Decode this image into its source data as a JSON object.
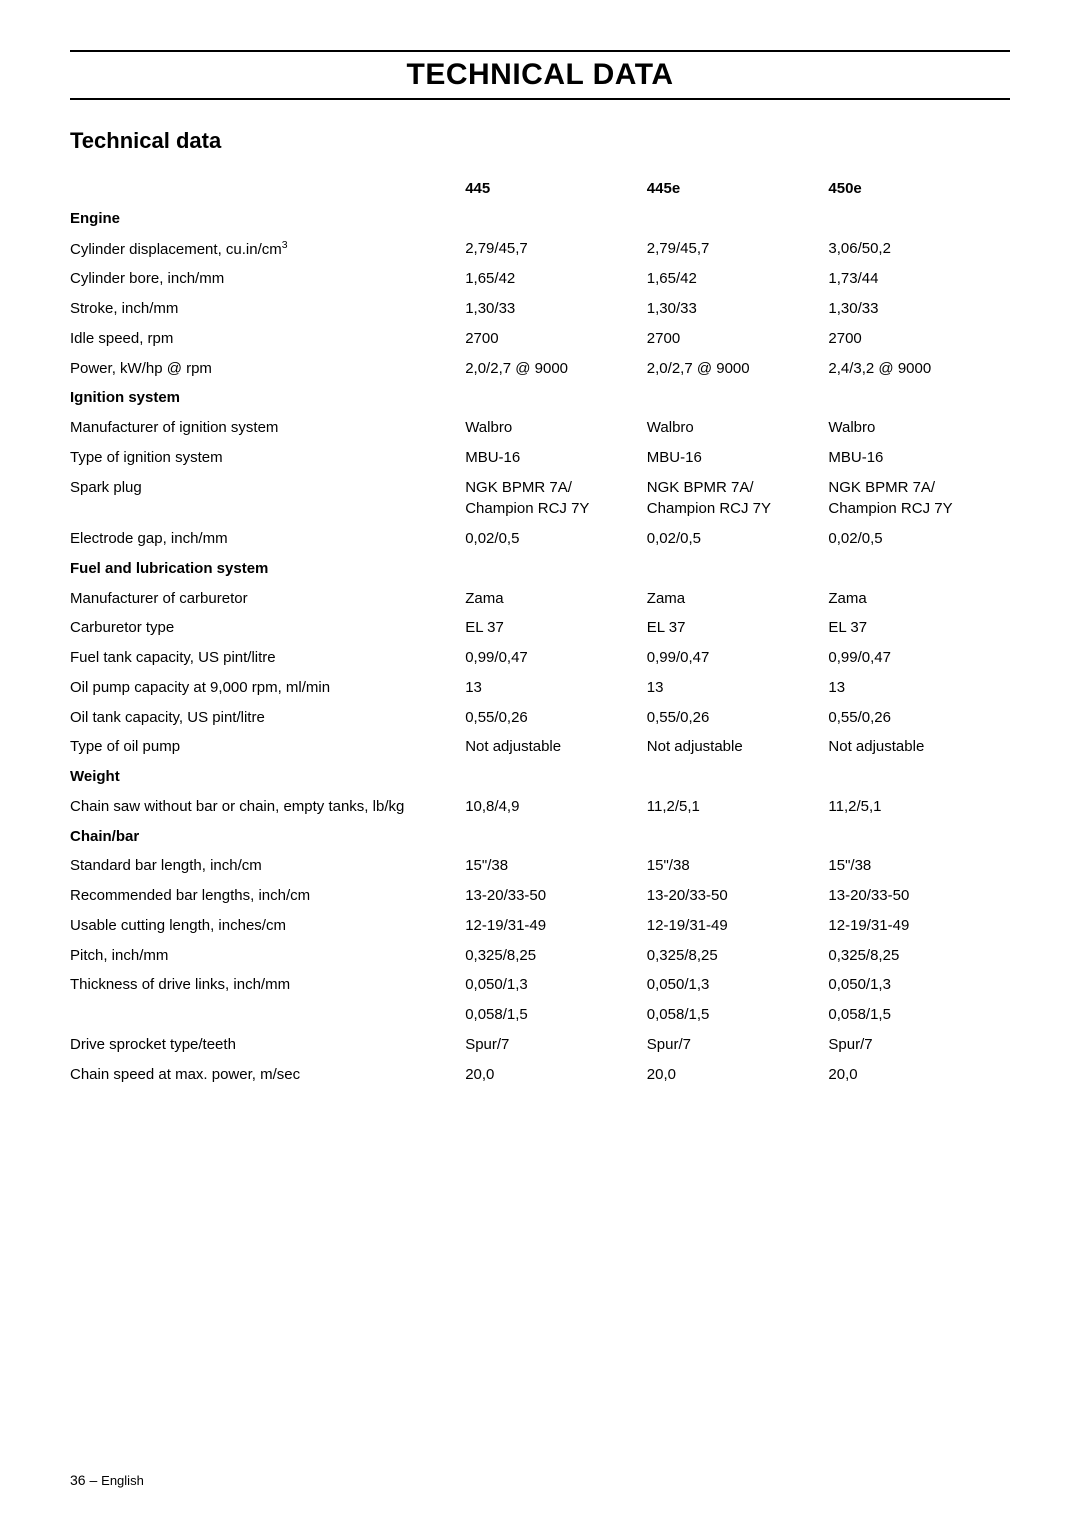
{
  "page": {
    "title": "TECHNICAL DATA",
    "subtitle": "Technical data",
    "footer_page": "36",
    "footer_sep": " – ",
    "footer_lang": "English"
  },
  "table": {
    "columns": [
      "445",
      "445e",
      "450e"
    ],
    "col_widths_pct": [
      42,
      19.3,
      19.3,
      19.3
    ],
    "font_size": 15,
    "sections": [
      {
        "heading": "Engine",
        "rows": [
          {
            "label_html": "Cylinder displacement, cu.in/cm<span class='sup'>3</span>",
            "vals": [
              "2,79/45,7",
              "2,79/45,7",
              "3,06/50,2"
            ]
          },
          {
            "label": "Cylinder bore, inch/mm",
            "vals": [
              "1,65/42",
              "1,65/42",
              "1,73/44"
            ]
          },
          {
            "label": "Stroke, inch/mm",
            "vals": [
              "1,30/33",
              "1,30/33",
              "1,30/33"
            ]
          },
          {
            "label": "Idle speed, rpm",
            "vals": [
              "2700",
              "2700",
              "2700"
            ]
          },
          {
            "label": "Power, kW/hp @ rpm",
            "vals": [
              "2,0/2,7 @ 9000",
              "2,0/2,7 @ 9000",
              "2,4/3,2 @ 9000"
            ]
          }
        ]
      },
      {
        "heading": "Ignition system",
        "rows": [
          {
            "label": "Manufacturer of ignition system",
            "vals": [
              "Walbro",
              "Walbro",
              "Walbro"
            ]
          },
          {
            "label": "Type of ignition system",
            "vals": [
              "MBU-16",
              "MBU-16",
              "MBU-16"
            ]
          },
          {
            "label": "Spark plug",
            "vals": [
              "NGK BPMR 7A/\nChampion RCJ 7Y",
              "NGK BPMR 7A/\nChampion RCJ 7Y",
              "NGK BPMR 7A/\nChampion RCJ 7Y"
            ]
          },
          {
            "label": "Electrode gap, inch/mm",
            "vals": [
              "0,02/0,5",
              "0,02/0,5",
              "0,02/0,5"
            ]
          }
        ]
      },
      {
        "heading": "Fuel and lubrication system",
        "rows": [
          {
            "label": "Manufacturer of carburetor",
            "vals": [
              "Zama",
              "Zama",
              "Zama"
            ]
          },
          {
            "label": "Carburetor type",
            "vals": [
              "EL 37",
              "EL 37",
              "EL 37"
            ]
          },
          {
            "label": "Fuel tank capacity, US pint/litre",
            "vals": [
              "0,99/0,47",
              "0,99/0,47",
              "0,99/0,47"
            ]
          },
          {
            "label": "Oil pump capacity at 9,000 rpm, ml/min",
            "vals": [
              "13",
              "13",
              "13"
            ]
          },
          {
            "label": "Oil tank capacity, US pint/litre",
            "vals": [
              "0,55/0,26",
              "0,55/0,26",
              "0,55/0,26"
            ]
          },
          {
            "label": "Type of oil pump",
            "vals": [
              "Not adjustable",
              "Not adjustable",
              "Not adjustable"
            ]
          }
        ]
      },
      {
        "heading": "Weight",
        "rows": [
          {
            "label": "Chain saw without bar or chain, empty tanks, lb/kg",
            "vals": [
              "10,8/4,9",
              "11,2/5,1",
              "11,2/5,1"
            ]
          }
        ]
      },
      {
        "heading": "Chain/bar",
        "rows": [
          {
            "label": "Standard bar length, inch/cm",
            "vals": [
              "15\"/38",
              "15\"/38",
              "15\"/38"
            ]
          },
          {
            "label": "Recommended bar lengths, inch/cm",
            "vals": [
              "13-20/33-50",
              "13-20/33-50",
              "13-20/33-50"
            ]
          },
          {
            "label": "Usable cutting length, inches/cm",
            "vals": [
              "12-19/31-49",
              "12-19/31-49",
              "12-19/31-49"
            ]
          },
          {
            "label": "Pitch, inch/mm",
            "vals": [
              "0,325/8,25",
              "0,325/8,25",
              "0,325/8,25"
            ]
          },
          {
            "label": "Thickness of drive links, inch/mm",
            "vals": [
              "0,050/1,3",
              "0,050/1,3",
              "0,050/1,3"
            ]
          },
          {
            "label": "",
            "vals": [
              "0,058/1,5",
              "0,058/1,5",
              "0,058/1,5"
            ]
          },
          {
            "label": "Drive sprocket type/teeth",
            "vals": [
              "Spur/7",
              "Spur/7",
              "Spur/7"
            ]
          },
          {
            "label": "Chain speed at max. power, m/sec",
            "vals": [
              "20,0",
              "20,0",
              "20,0"
            ]
          }
        ]
      }
    ]
  }
}
